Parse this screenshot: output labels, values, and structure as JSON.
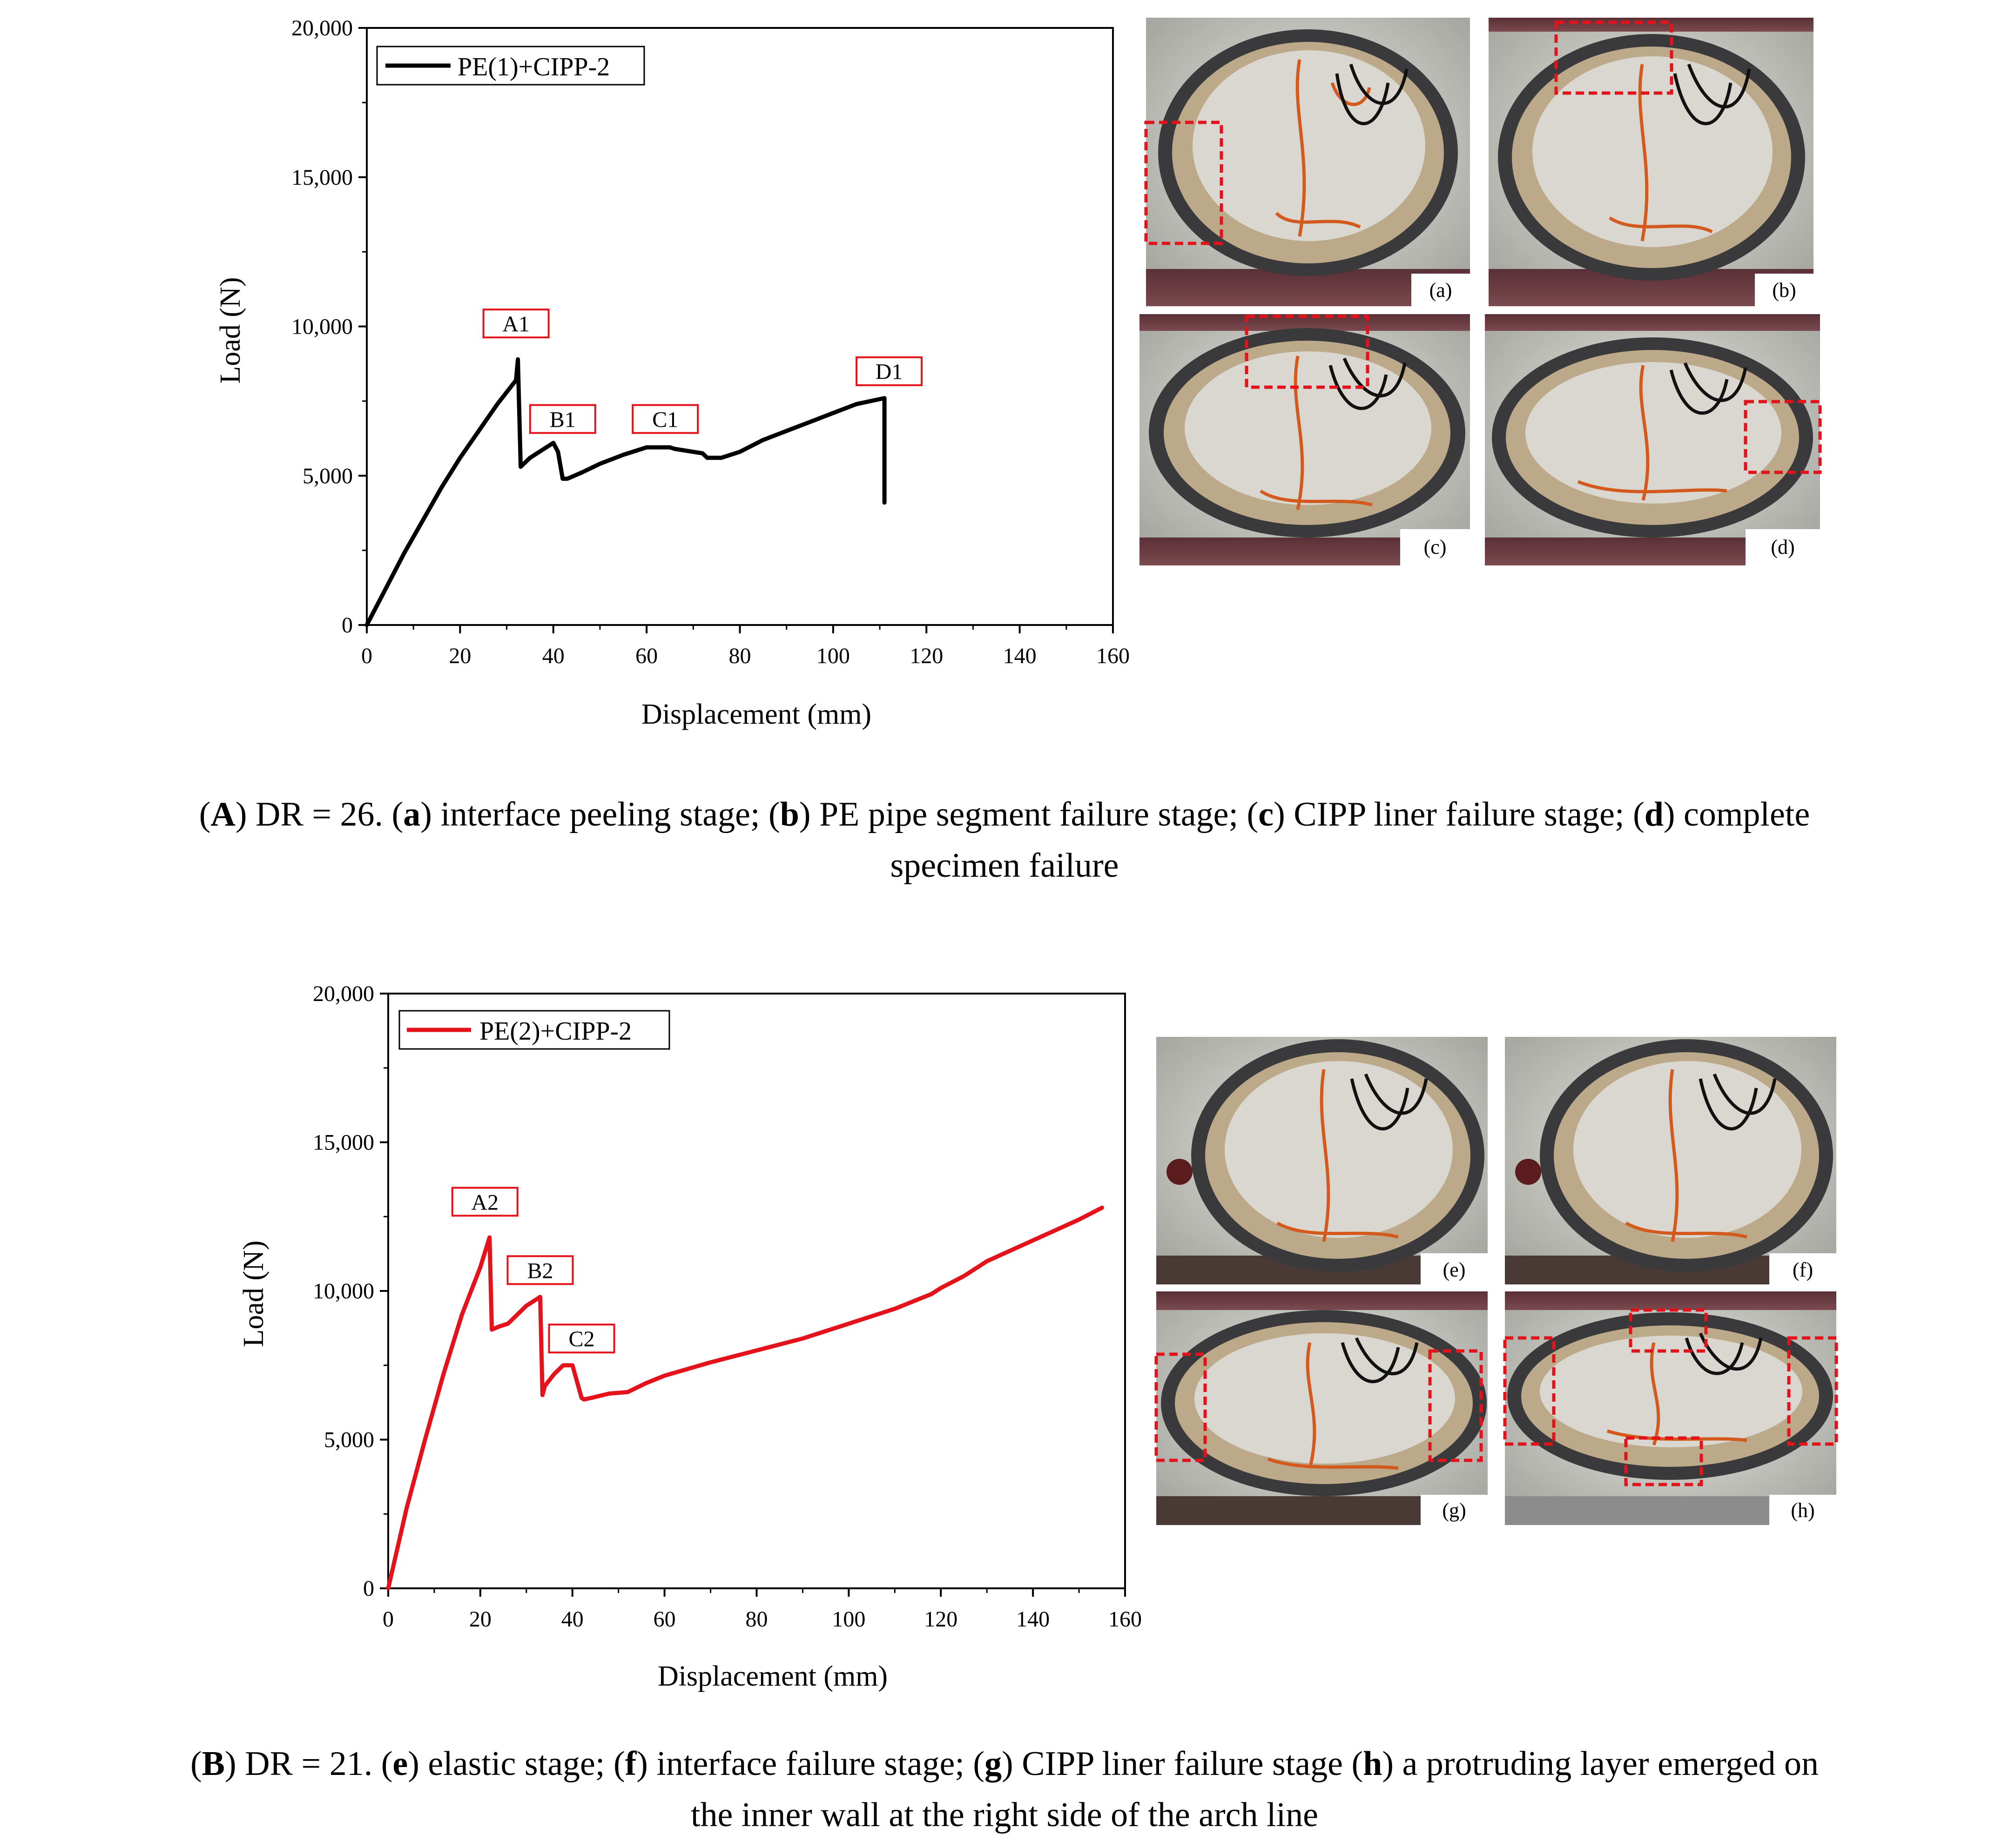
{
  "chart_data": [
    {
      "type": "line",
      "xlabel": "Displacement (mm)",
      "ylabel": "Load (N)",
      "xlim": [
        0,
        160
      ],
      "ylim": [
        0,
        20000
      ],
      "xticks": [
        0,
        20,
        40,
        60,
        80,
        100,
        120,
        140,
        160
      ],
      "yticks": [
        0,
        5000,
        10000,
        15000,
        20000
      ],
      "ytick_labels": [
        "0",
        "5,000",
        "10,000",
        "15,000",
        "20,000"
      ],
      "grid": false,
      "legend_position": "top-left",
      "color": "#000000",
      "series": [
        {
          "name": "PE(1)+CIPP-2",
          "x": [
            0,
            4,
            8,
            12,
            16,
            20,
            24,
            28,
            32,
            32.4,
            33,
            35,
            38,
            40,
            41,
            42,
            43,
            46,
            50,
            55,
            60,
            65,
            66,
            70,
            72,
            73,
            76,
            80,
            85,
            90,
            95,
            100,
            105,
            111,
            111,
            111
          ],
          "y": [
            0,
            1200,
            2400,
            3500,
            4600,
            5600,
            6500,
            7400,
            8200,
            8900,
            5300,
            5600,
            5900,
            6100,
            5800,
            4900,
            4900,
            5100,
            5400,
            5700,
            5950,
            5950,
            5900,
            5800,
            5750,
            5600,
            5600,
            5800,
            6200,
            6500,
            6800,
            7100,
            7400,
            7600,
            6500,
            4100
          ]
        }
      ],
      "annotations": [
        {
          "label": "A1",
          "x": 32,
          "y": 10100
        },
        {
          "label": "B1",
          "x": 42,
          "y": 6900
        },
        {
          "label": "C1",
          "x": 64,
          "y": 6900
        },
        {
          "label": "D1",
          "x": 112,
          "y": 8500
        }
      ]
    },
    {
      "type": "line",
      "xlabel": "Displacement (mm)",
      "ylabel": "Load (N)",
      "xlim": [
        0,
        160
      ],
      "ylim": [
        0,
        20000
      ],
      "xticks": [
        0,
        20,
        40,
        60,
        80,
        100,
        120,
        140,
        160
      ],
      "yticks": [
        0,
        5000,
        10000,
        15000,
        20000
      ],
      "ytick_labels": [
        "0",
        "5,000",
        "10,000",
        "15,000",
        "20,000"
      ],
      "grid": false,
      "legend_position": "top-left",
      "color": "#e3121b",
      "series": [
        {
          "name": "PE(2)+CIPP-2",
          "x": [
            0,
            4,
            8,
            12,
            16,
            20,
            22,
            22.5,
            24,
            26,
            30,
            33,
            33.5,
            34,
            36,
            38,
            40,
            42,
            42.5,
            44,
            48,
            52,
            56,
            60,
            70,
            80,
            90,
            100,
            110,
            118,
            120,
            125,
            130,
            140,
            150,
            155
          ],
          "y": [
            0,
            2700,
            5000,
            7200,
            9200,
            10800,
            11800,
            8700,
            8800,
            8900,
            9500,
            9800,
            6500,
            6800,
            7200,
            7500,
            7500,
            6400,
            6350,
            6400,
            6550,
            6600,
            6900,
            7150,
            7600,
            8000,
            8400,
            8900,
            9400,
            9900,
            10100,
            10500,
            11000,
            11700,
            12400,
            12800
          ]
        }
      ],
      "annotations": [
        {
          "label": "A2",
          "x": 21,
          "y": 13000
        },
        {
          "label": "B2",
          "x": 33,
          "y": 10700
        },
        {
          "label": "C2",
          "x": 42,
          "y": 8400
        }
      ]
    }
  ],
  "photos_a": {
    "labels": [
      "(a)",
      "(b)",
      "(c)",
      "(d)"
    ]
  },
  "photos_b": {
    "labels": [
      "(e)",
      "(f)",
      "(g)",
      "(h)"
    ]
  },
  "caption_a": {
    "line1": {
      "p1": "(",
      "b1": "A",
      "p2": ") DR = 26. (",
      "b2": "a",
      "p3": ") interface peeling stage; (",
      "b3": "b",
      "p4": ") PE pipe segment failure stage; (",
      "b4": "c",
      "p5": ") CIPP liner failure stage; (",
      "b5": "d",
      "p6": ") complete"
    },
    "line2": "specimen failure"
  },
  "caption_b": {
    "line1": {
      "p1": "(",
      "b1": "B",
      "p2": ") DR = 21. (",
      "b2": "e",
      "p3": ") elastic stage; (",
      "b3": "f",
      "p4": ") interface failure stage; (",
      "b4": "g",
      "p5": ") CIPP liner failure stage (",
      "b5": "h",
      "p6": ") a protruding layer emerged on"
    },
    "line2": "the inner wall at the right side of the arch line"
  }
}
